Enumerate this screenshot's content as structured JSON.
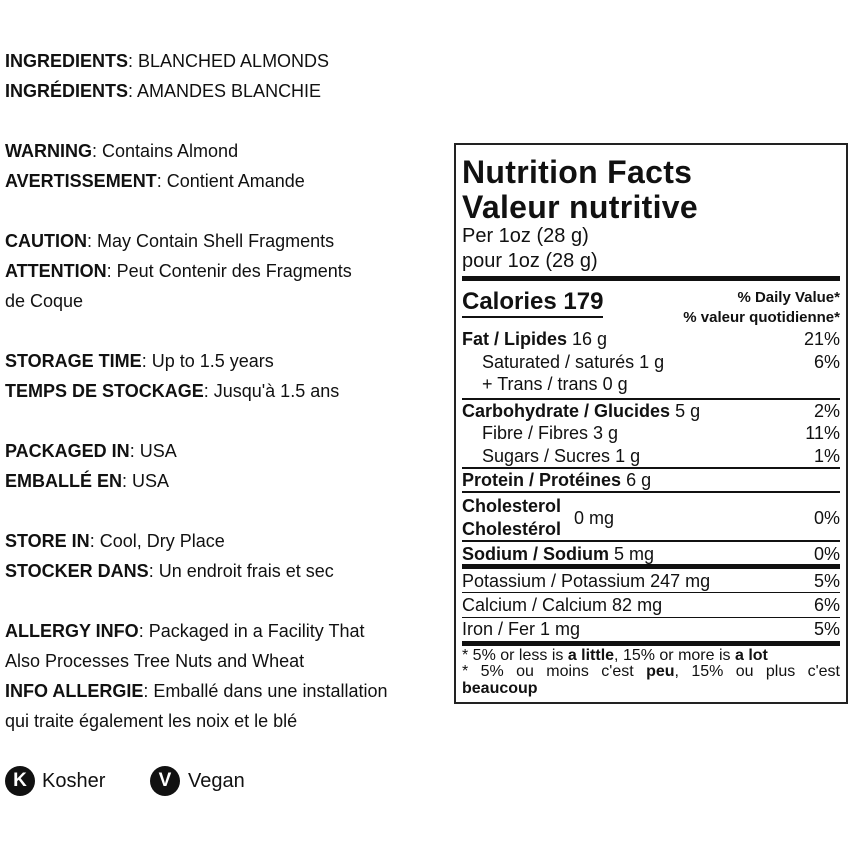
{
  "info": [
    {
      "label": "INGREDIENTS",
      "value": ": BLANCHED ALMONDS"
    },
    {
      "label": "INGRÉDIENTS",
      "value": ": AMANDES BLANCHIE"
    },
    {
      "label": "WARNING",
      "value": ": Contains Almond"
    },
    {
      "label": "AVERTISSEMENT",
      "value": ": Contient Amande"
    },
    {
      "label": "CAUTION",
      "value": ": May Contain Shell Fragments"
    },
    {
      "label": "ATTENTION",
      "value": ": Peut Contenir des Fragments"
    },
    {
      "label": "",
      "value": "de Coque"
    },
    {
      "label": "STORAGE TIME",
      "value": ": Up to 1.5 years"
    },
    {
      "label": "TEMPS DE STOCKAGE",
      "value": ": Jusqu'à 1.5 ans"
    },
    {
      "label": "PACKAGED IN",
      "value": ": USA"
    },
    {
      "label": "EMBALLÉ EN",
      "value": ": USA"
    },
    {
      "label": "STORE IN",
      "value": ": Cool, Dry Place"
    },
    {
      "label": "STOCKER DANS",
      "value": ": Un endroit frais et sec"
    },
    {
      "label": "ALLERGY INFO",
      "value": ": Packaged in a Facility That"
    },
    {
      "label": "",
      "value": "Also Processes Tree Nuts and Wheat"
    },
    {
      "label": "INFO ALLERGIE",
      "value": ": Emballé dans une installation"
    },
    {
      "label": "",
      "value": "qui traite également les noix et le blé"
    }
  ],
  "badges": [
    {
      "letter": "K",
      "label": "Kosher"
    },
    {
      "letter": "V",
      "label": "Vegan"
    }
  ],
  "nutrition": {
    "title_en": "Nutrition Facts",
    "title_fr": "Valeur nutritive",
    "serving_en": "Per 1oz (28 g)",
    "serving_fr": "pour 1oz (28 g)",
    "calories_label": "Calories",
    "calories": "179",
    "dv_en": "% Daily Value*",
    "dv_fr": "% valeur quotidienne*",
    "rows": [
      {
        "name": "Fat / Lipides",
        "amount": "16 g",
        "pct": "21%"
      },
      {
        "name": "Saturated / saturés",
        "amount": "1 g",
        "pct": "6%"
      },
      {
        "name": "+ Trans / trans",
        "amount": "0 g",
        "pct": ""
      },
      {
        "name": "Carbohydrate / Glucides",
        "amount": "5 g",
        "pct": "2%"
      },
      {
        "name": "Fibre / Fibres",
        "amount": "3 g",
        "pct": "11%"
      },
      {
        "name": "Sugars / Sucres",
        "amount": "1 g",
        "pct": "1%"
      },
      {
        "name": "Protein / Protéines",
        "amount": "6 g",
        "pct": ""
      },
      {
        "name": "Cholesterol",
        "name2": "Cholestérol",
        "amount": "0 mg",
        "pct": "0%"
      },
      {
        "name": "Sodium / Sodium",
        "amount": "5 mg",
        "pct": "0%"
      },
      {
        "name": "Potassium / Potassium",
        "amount": "247 mg",
        "pct": "5%"
      },
      {
        "name": "Calcium / Calcium",
        "amount": "82 mg",
        "pct": "6%"
      },
      {
        "name": "Iron / Fer",
        "amount": "1 mg",
        "pct": "5%"
      }
    ],
    "foot_en": [
      "* 5% or less is ",
      "a little",
      ", 15% or more is ",
      "a lot"
    ],
    "foot_fr": [
      "* 5% ou moins c'est ",
      "peu",
      ", 15% ou plus c'est ",
      "beaucoup"
    ]
  }
}
